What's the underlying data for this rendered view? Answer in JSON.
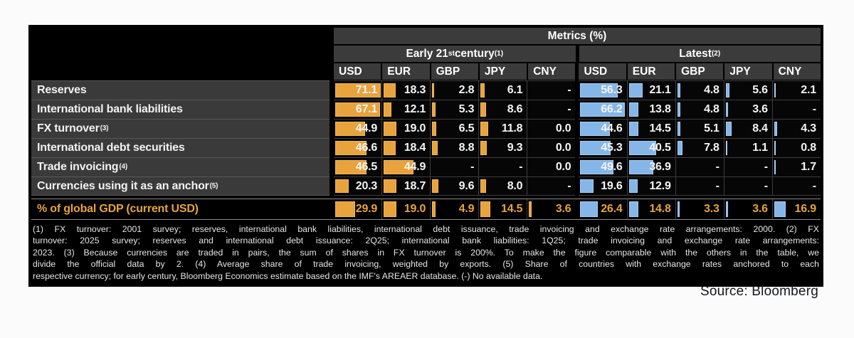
{
  "chart_data": {
    "type": "table",
    "title": "Metrics (%)",
    "column_groups": [
      {
        "name": "Early 21st century",
        "footnote_ref": "(1)",
        "parts": [
          {
            "t": "Early 21"
          },
          {
            "t": "st",
            "sup": true
          },
          {
            "t": " century"
          },
          {
            "t": "(1)",
            "sup": true
          }
        ]
      },
      {
        "name": "Latest",
        "footnote_ref": "(2)",
        "parts": [
          {
            "t": "Latest"
          },
          {
            "t": "(2)",
            "sup": true
          }
        ]
      }
    ],
    "columns": [
      "USD",
      "EUR",
      "GBP",
      "JPY",
      "CNY"
    ],
    "rows": [
      {
        "label": "Reserves",
        "footnote_ref": null,
        "early": [
          71.1,
          18.3,
          2.8,
          6.1,
          null
        ],
        "latest": [
          56.3,
          21.1,
          4.8,
          5.6,
          2.1
        ]
      },
      {
        "label": "International bank liabilities",
        "footnote_ref": null,
        "early": [
          67.1,
          12.1,
          5.3,
          8.6,
          null
        ],
        "latest": [
          66.2,
          13.8,
          4.8,
          3.6,
          null
        ]
      },
      {
        "label": "FX turnover",
        "footnote_ref": "(3)",
        "early": [
          44.9,
          19.0,
          6.5,
          11.8,
          0.0
        ],
        "latest": [
          44.6,
          14.5,
          5.1,
          8.4,
          4.3
        ]
      },
      {
        "label": "International debt securities",
        "footnote_ref": null,
        "early": [
          46.6,
          18.4,
          8.8,
          9.3,
          0.0
        ],
        "latest": [
          45.3,
          40.5,
          7.8,
          1.1,
          0.8
        ]
      },
      {
        "label": "Trade invoicing",
        "footnote_ref": "(4)",
        "early": [
          46.5,
          44.9,
          null,
          null,
          0.0
        ],
        "latest": [
          49.6,
          36.9,
          null,
          null,
          1.7
        ]
      },
      {
        "label": "Currencies using it as an anchor",
        "footnote_ref": "(5)",
        "early": [
          20.3,
          18.7,
          9.6,
          8.0,
          null
        ],
        "latest": [
          19.6,
          12.9,
          null,
          null,
          null
        ]
      }
    ],
    "summary_row": {
      "label": "% of global GDP (current USD)",
      "footnote_ref": null,
      "early": [
        29.9,
        19.0,
        4.9,
        14.5,
        3.6
      ],
      "latest": [
        26.4,
        14.8,
        3.3,
        3.6,
        16.9
      ]
    },
    "missing_marker": "-",
    "unit": "%",
    "bar_colors": {
      "early": "#E8A33D",
      "latest": "#85B6E8"
    },
    "bar_borders": {
      "early": "#f0b55e",
      "latest": "#a8ccf0"
    },
    "summary_text_color": "#E8A33D"
  },
  "footnotes": {
    "lines": [
      "(1) FX turnover: 2001 survey; reserves, international bank liabilities, international debt issuance, trade invoicing and exchange rate arrangements: 2000. (2) FX",
      "turnover: 2025 survey; reserves and international debt issuance: 2Q25; international bank liabilities: 1Q25; trade invoicing and exchange rate arrangements:",
      "2023. (3) Because currencies are traded in pairs, the sum of shares in FX turnover is 200%. To make the figure comparable with the others in the table, we",
      "divide the official data by 2. (4) Average share of trade invoicing, weighted by exports. (5) Share of countries with exchange rates anchored to each",
      "respective currency; for early century, Bloomberg Economics estimate based on the IMF's AREAER database. (-) No available data."
    ]
  },
  "source": "Source: Bloomberg"
}
